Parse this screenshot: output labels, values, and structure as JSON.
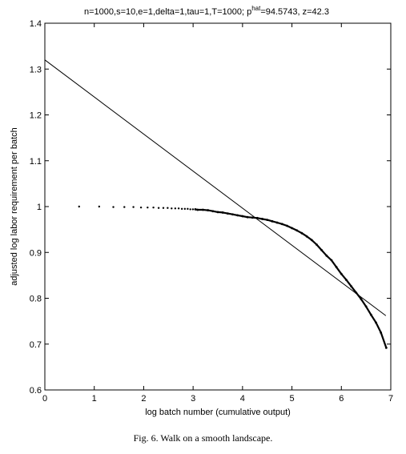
{
  "chart_data": {
    "type": "scatter",
    "title_main": "n=1000,s=10,e=1,delta=1,tau=1,T=1000; p",
    "title_sup": "hat",
    "title_rest": "=94.5743, z=42.3",
    "xlabel": "log batch number (cumulative output)",
    "ylabel": "adjusted log labor requirement per batch",
    "xlim": [
      0,
      7
    ],
    "ylim": [
      0.6,
      1.4
    ],
    "xticks": [
      0,
      1,
      2,
      3,
      4,
      5,
      6,
      7
    ],
    "xtick_labels": [
      "0",
      "1",
      "2",
      "3",
      "4",
      "5",
      "6",
      "7"
    ],
    "yticks": [
      0.6,
      0.7,
      0.8,
      0.9,
      1.0,
      1.1,
      1.2,
      1.3,
      1.4
    ],
    "ytick_labels": [
      "0.6",
      "0.7",
      "0.8",
      "0.9",
      "1",
      "1.1",
      "1.2",
      "1.3",
      "1.4"
    ],
    "grid": false,
    "series": [
      {
        "kind": "scatter",
        "x": [
          0.693,
          1.099,
          1.386,
          1.609,
          1.792,
          1.946,
          2.079,
          2.197,
          2.303,
          2.398,
          2.485,
          2.565,
          2.639,
          2.708,
          2.773,
          2.833,
          2.89,
          2.944,
          2.996,
          3.045,
          3.091,
          3.2,
          3.3,
          3.4,
          3.5,
          3.6,
          3.7,
          3.8,
          3.9,
          4.0,
          4.1,
          4.2,
          4.3,
          4.4,
          4.5,
          4.6,
          4.7,
          4.8,
          4.9,
          5.0,
          5.1,
          5.2,
          5.3,
          5.4,
          5.5,
          5.6,
          5.7,
          5.8,
          5.9,
          6.0,
          6.1,
          6.2,
          6.3,
          6.4,
          6.5,
          6.6,
          6.7,
          6.8,
          6.908
        ],
        "y": [
          1.0,
          1.0,
          0.999,
          0.999,
          0.999,
          0.998,
          0.998,
          0.998,
          0.997,
          0.997,
          0.997,
          0.996,
          0.996,
          0.996,
          0.995,
          0.995,
          0.995,
          0.994,
          0.994,
          0.994,
          0.993,
          0.993,
          0.992,
          0.99,
          0.988,
          0.987,
          0.985,
          0.983,
          0.981,
          0.979,
          0.977,
          0.976,
          0.975,
          0.973,
          0.971,
          0.968,
          0.965,
          0.962,
          0.958,
          0.953,
          0.948,
          0.942,
          0.935,
          0.927,
          0.917,
          0.905,
          0.893,
          0.883,
          0.868,
          0.853,
          0.84,
          0.826,
          0.812,
          0.798,
          0.782,
          0.764,
          0.747,
          0.725,
          0.692
        ]
      },
      {
        "kind": "line",
        "x": [
          0,
          6.9
        ],
        "y": [
          1.32,
          0.762
        ]
      }
    ]
  },
  "caption": "Fig. 6.  Walk on a smooth landscape."
}
